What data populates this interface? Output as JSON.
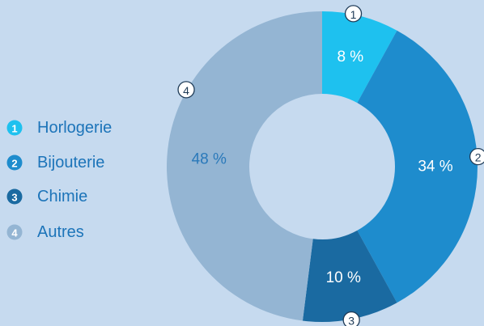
{
  "chart_data": {
    "type": "pie",
    "donut": true,
    "categories": [
      "Horlogerie",
      "Bijouterie",
      "Chimie",
      "Autres"
    ],
    "values": [
      8,
      34,
      10,
      48
    ],
    "value_labels": [
      "8 %",
      "34 %",
      "10 %",
      "48 %"
    ],
    "markers": [
      "1",
      "2",
      "3",
      "4"
    ],
    "colors": [
      "#1ec1ef",
      "#1e8ccd",
      "#1a6aa1",
      "#94b5d3"
    ],
    "label_colors": [
      "#ffffff",
      "#ffffff",
      "#ffffff",
      "#2a79ba"
    ]
  }
}
